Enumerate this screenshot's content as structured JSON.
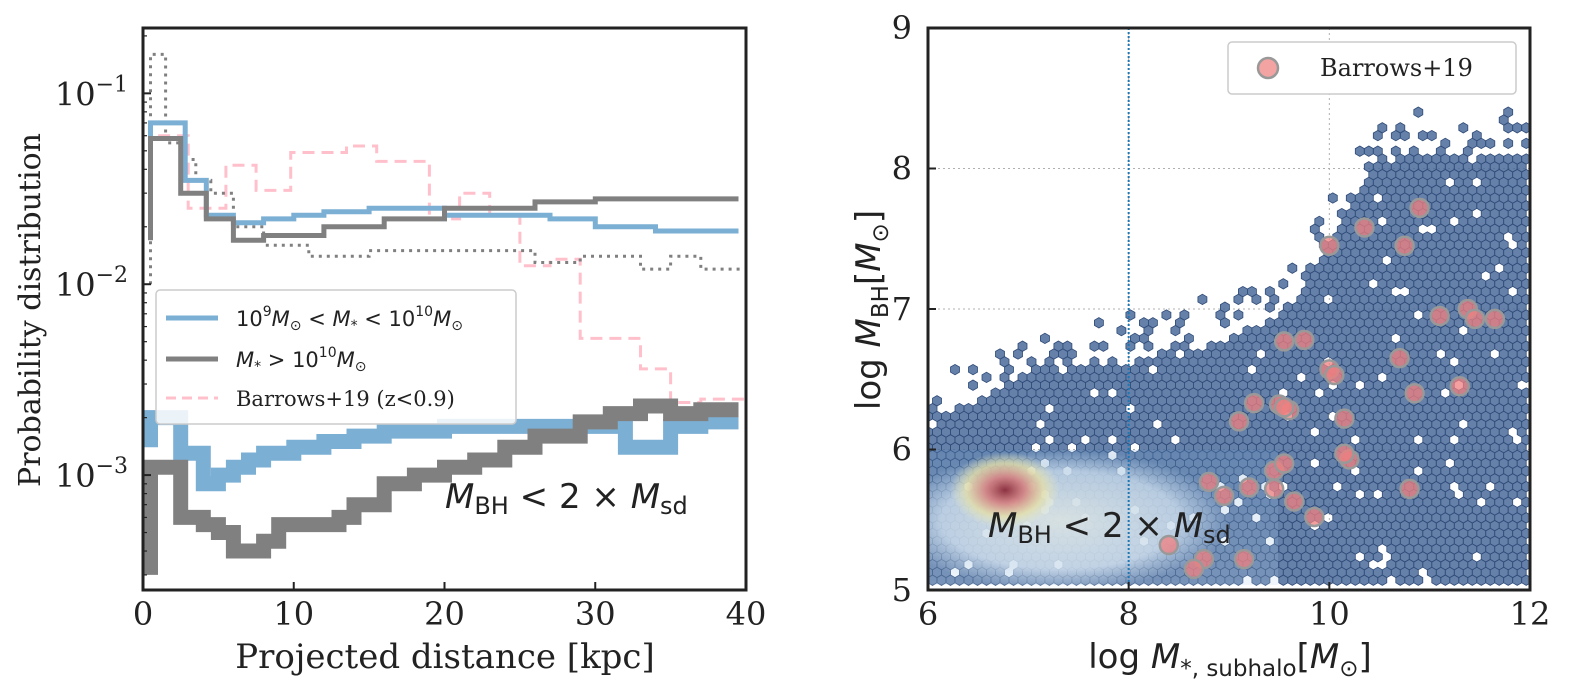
{
  "chart_data": [
    {
      "type": "line",
      "title": "",
      "xlabel": "Projected distance [kpc]",
      "ylabel": "Probability distribution",
      "xscale": "linear",
      "yscale": "log",
      "xlim": [
        0,
        40
      ],
      "ylim": [
        0.00025,
        0.22
      ],
      "xticks": [
        0,
        10,
        20,
        30,
        40
      ],
      "xtick_labels": [
        "0",
        "10",
        "20",
        "30",
        "40"
      ],
      "yticks": [
        0.001,
        0.01,
        0.1
      ],
      "ytick_labels": [
        {
          "base": "10",
          "exp": "−3"
        },
        {
          "base": "10",
          "exp": "−2"
        },
        {
          "base": "10",
          "exp": "−1"
        }
      ],
      "annotation": {
        "text": "M_BH < 2 × M_sd",
        "main": "M",
        "sub": "BH",
        "mid": " < 2 × ",
        "main2": "M",
        "sub2": "sd"
      },
      "legend": {
        "placement": "center-left",
        "entries": [
          {
            "label_parts": [
              "10",
              "9",
              "M",
              "⊙",
              " < ",
              "M",
              "*",
              " < 10",
              "10",
              "M",
              "⊙"
            ],
            "color": "#7bafd4",
            "style": "solid"
          },
          {
            "label_parts": [
              "M",
              "*",
              " > 10",
              "10",
              "M",
              "⊙"
            ],
            "color": "#808080",
            "style": "solid"
          },
          {
            "label": "Barrows+19 (z<0.9)",
            "color": "#ffc0cb",
            "style": "dashed"
          }
        ]
      },
      "series": [
        {
          "name": "Barrows+19 (z<0.9)",
          "color": "#ffc0cb",
          "style": "dashed",
          "width": 3,
          "step": true,
          "x": [
            1,
            3,
            3,
            5.5,
            5.5,
            7.5,
            7.5,
            9.8,
            9.8,
            13.5,
            13.5,
            15.5,
            15.5,
            19,
            19,
            21,
            21,
            23,
            23,
            25,
            25,
            27,
            27,
            29,
            29,
            31,
            31,
            33,
            33,
            35,
            35,
            37,
            37,
            40
          ],
          "values": [
            0.06,
            0.06,
            0.025,
            0.025,
            0.042,
            0.042,
            0.031,
            0.031,
            0.049,
            0.049,
            0.053,
            0.053,
            0.044,
            0.044,
            0.022,
            0.022,
            0.03,
            0.03,
            0.023,
            0.023,
            0.0125,
            0.0125,
            0.0135,
            0.0135,
            0.0052,
            0.0052,
            0.0052,
            0.0052,
            0.0036,
            0.0036,
            0.0024,
            0.0024,
            0.0025,
            0.0025
          ]
        },
        {
          "name": "M* > 10^10 Msun (dotted)",
          "color": "#808080",
          "style": "dotted",
          "width": 3,
          "step": true,
          "x": [
            0.5,
            0.5,
            1.5,
            1.5,
            2.5,
            2.5,
            3.5,
            3.5,
            4.5,
            4.5,
            6,
            6,
            8,
            8,
            11,
            11,
            15,
            15,
            21,
            21,
            26,
            26,
            29,
            29,
            33,
            33,
            35,
            35,
            37,
            37,
            40
          ],
          "values": [
            0.01,
            0.16,
            0.16,
            0.055,
            0.055,
            0.045,
            0.045,
            0.035,
            0.035,
            0.03,
            0.03,
            0.02,
            0.02,
            0.016,
            0.016,
            0.014,
            0.014,
            0.015,
            0.015,
            0.015,
            0.015,
            0.013,
            0.013,
            0.014,
            0.014,
            0.012,
            0.012,
            0.014,
            0.014,
            0.012,
            0.012
          ]
        },
        {
          "name": "10^9 Msun < M* < 10^10 Msun",
          "color": "#7bafd4",
          "style": "solid",
          "width": 5,
          "step": true,
          "x": [
            0.5,
            0.5,
            2.8,
            2.8,
            4.2,
            4.2,
            6,
            6,
            8,
            8,
            10,
            10,
            12,
            12,
            15,
            15,
            20,
            20,
            27,
            27,
            30,
            30,
            34,
            34,
            39.5
          ],
          "values": [
            0.04,
            0.07,
            0.07,
            0.035,
            0.035,
            0.023,
            0.023,
            0.021,
            0.021,
            0.022,
            0.022,
            0.023,
            0.023,
            0.024,
            0.024,
            0.025,
            0.025,
            0.023,
            0.023,
            0.022,
            0.022,
            0.02,
            0.02,
            0.019,
            0.019
          ]
        },
        {
          "name": "M* > 10^10 Msun",
          "color": "#808080",
          "style": "solid",
          "width": 5,
          "step": true,
          "x": [
            0.5,
            0.5,
            2.5,
            2.5,
            4.2,
            4.2,
            6,
            6,
            8,
            8,
            12,
            12,
            16,
            16,
            20,
            20,
            26,
            26,
            30,
            30,
            34,
            34,
            39.5
          ],
          "values": [
            0.017,
            0.058,
            0.058,
            0.03,
            0.03,
            0.022,
            0.022,
            0.017,
            0.017,
            0.018,
            0.018,
            0.02,
            0.02,
            0.022,
            0.022,
            0.025,
            0.025,
            0.027,
            0.027,
            0.028,
            0.028,
            0.028,
            0.028
          ]
        },
        {
          "name": "M_BH < 2 M_sd (M* 10^9–10^10)",
          "color": "#7bafd4",
          "style": "solid",
          "width": 15,
          "step": true,
          "x": [
            0.5,
            0.5,
            2.5,
            2.5,
            4,
            4,
            5,
            5,
            6,
            6,
            7,
            7,
            8,
            8,
            10,
            10,
            12,
            12,
            14,
            14,
            16,
            16,
            20,
            20,
            32,
            32,
            35,
            35,
            37,
            37,
            39.5
          ],
          "values": [
            0.0014,
            0.002,
            0.002,
            0.0013,
            0.0013,
            0.0009,
            0.0009,
            0.001,
            0.001,
            0.0011,
            0.0011,
            0.0012,
            0.0012,
            0.0013,
            0.0013,
            0.0014,
            0.0014,
            0.0015,
            0.0015,
            0.0016,
            0.0016,
            0.0017,
            0.0017,
            0.0018,
            0.0018,
            0.0014,
            0.0014,
            0.0018,
            0.0018,
            0.0019,
            0.0019
          ]
        },
        {
          "name": "M_BH < 2 M_sd (M* > 10^10)",
          "color": "#808080",
          "style": "solid",
          "width": 15,
          "step": true,
          "x": [
            0.5,
            0.5,
            2.5,
            2.5,
            4,
            4,
            5,
            5,
            6,
            6,
            8,
            8,
            9,
            9,
            13,
            13,
            14,
            14,
            16,
            16,
            18,
            18,
            20,
            20,
            22,
            22,
            24,
            24,
            26,
            26,
            29,
            29,
            31,
            31,
            33,
            33,
            35,
            35,
            37,
            37,
            39.5
          ],
          "values": [
            0.0003,
            0.0011,
            0.0011,
            0.0006,
            0.0006,
            0.00055,
            0.00055,
            0.0005,
            0.0005,
            0.0004,
            0.0004,
            0.00045,
            0.00045,
            0.00055,
            0.00055,
            0.0006,
            0.0006,
            0.0007,
            0.0007,
            0.0009,
            0.0009,
            0.001,
            0.001,
            0.0011,
            0.0011,
            0.0012,
            0.0012,
            0.0014,
            0.0014,
            0.0016,
            0.0016,
            0.0019,
            0.0019,
            0.0021,
            0.0021,
            0.0023,
            0.0023,
            0.0021,
            0.0021,
            0.0022,
            0.0022
          ]
        }
      ]
    },
    {
      "type": "scatter",
      "title": "",
      "xlabel_parts": [
        "log ",
        "M",
        "*, subhalo",
        "[",
        "M",
        "⊙",
        "]"
      ],
      "ylabel_parts": [
        "log ",
        "M",
        "BH",
        "[",
        "M",
        "⊙",
        "]"
      ],
      "xlim": [
        6,
        12
      ],
      "ylim": [
        5,
        9
      ],
      "xticks": [
        6,
        8,
        10,
        12
      ],
      "xtick_labels": [
        "6",
        "8",
        "10",
        "12"
      ],
      "yticks": [
        5,
        6,
        7,
        8,
        9
      ],
      "ytick_labels": [
        "5",
        "6",
        "7",
        "8",
        "9"
      ],
      "grid": true,
      "vline_x": 8,
      "annotation": {
        "main": "M",
        "sub": "BH",
        "mid": " < 2 × ",
        "main2": "M",
        "sub2": "sd"
      },
      "legend": {
        "placement": "top-right",
        "entries": [
          {
            "label": "Barrows+19",
            "color": "#f4a3a3"
          }
        ]
      },
      "hexbin_color": "#4a6a9a",
      "points": [
        [
          10.0,
          7.45
        ],
        [
          10.35,
          7.58
        ],
        [
          10.75,
          7.45
        ],
        [
          10.9,
          7.72
        ],
        [
          11.1,
          6.95
        ],
        [
          11.38,
          7.0
        ],
        [
          11.45,
          6.93
        ],
        [
          11.65,
          6.93
        ],
        [
          9.75,
          6.78
        ],
        [
          9.55,
          6.77
        ],
        [
          10.0,
          6.57
        ],
        [
          10.05,
          6.53
        ],
        [
          10.7,
          6.65
        ],
        [
          10.85,
          6.4
        ],
        [
          11.3,
          6.45
        ],
        [
          10.15,
          6.22
        ],
        [
          9.25,
          6.33
        ],
        [
          9.5,
          6.32
        ],
        [
          9.6,
          6.28
        ],
        [
          9.55,
          6.3
        ],
        [
          9.1,
          6.2
        ],
        [
          10.2,
          5.93
        ],
        [
          10.15,
          5.97
        ],
        [
          10.8,
          5.72
        ],
        [
          9.45,
          5.85
        ],
        [
          9.55,
          5.9
        ],
        [
          9.45,
          5.72
        ],
        [
          9.65,
          5.63
        ],
        [
          8.8,
          5.77
        ],
        [
          8.95,
          5.67
        ],
        [
          9.2,
          5.73
        ],
        [
          9.85,
          5.52
        ],
        [
          8.4,
          5.32
        ],
        [
          8.75,
          5.22
        ],
        [
          8.65,
          5.15
        ],
        [
          9.15,
          5.22
        ]
      ]
    }
  ]
}
